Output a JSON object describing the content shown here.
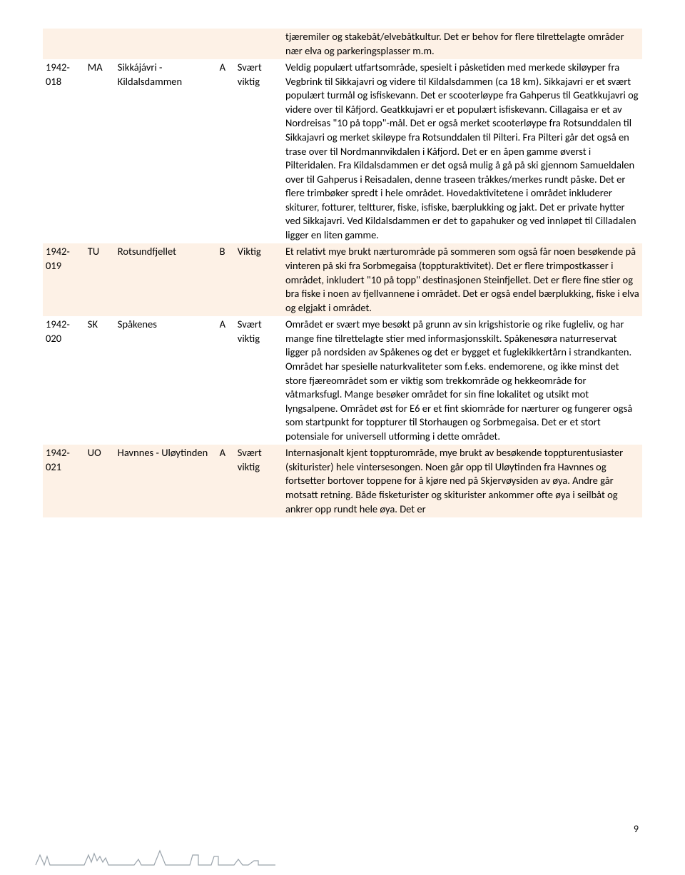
{
  "colors": {
    "row_bg_even": "#fdf1e6",
    "row_bg_odd": "#ffffff",
    "text": "#000000",
    "page_bg": "#ffffff",
    "sketch_stroke": "#9aa3ab"
  },
  "rows": [
    {
      "id": "",
      "type": "",
      "name": "",
      "grade": "",
      "importance": "",
      "desc": "tjæremiler og stakebåt/elvebåtkultur. Det er behov for flere tilrettelagte områder nær elva og parkeringsplasser m.m.",
      "bg": "#fdf1e6"
    },
    {
      "id": "1942-018",
      "type": "MA",
      "name": "Sikkájávri - Kildalsdammen",
      "grade": "A",
      "importance": "Svært viktig",
      "desc": "Veldig populært utfartsområde, spesielt i påsketiden med merkede skiløyper fra Vegbrink til Sikkajavri og videre til Kildalsdammen (ca 18 km). Sikkajavri er et svært populært turmål og isfiskevann. Det er scooterløype fra Gahperus til Geatkkujavri og videre over til Kåfjord. Geatkkujavri er et populært isfiskevann. Cillagaisa er et av Nordreisas \"10 på topp\"-mål. Det er også merket scooterløype fra Rotsunddalen til Sikkajavri og merket skiløype fra Rotsunddalen til Pilteri. Fra Pilteri går det også en trase over til Nordmannvikdalen i Kåfjord. Det er en åpen gamme øverst i Pilteridalen. Fra Kildalsdammen er det også mulig å gå på ski gjennom Samueldalen over til Gahperus i Reisadalen, denne traseen tråkkes/merkes rundt påske. Det er flere trimbøker spredt i hele området. Hovedaktivitetene i området inkluderer skiturer, fotturer, teltturer, fiske, isfiske, bærplukking og jakt. Det er private hytter ved Sikkajavri. Ved Kildalsdammen er det to gapahuker og ved innløpet til Cilladalen ligger en liten gamme.",
      "bg": "#ffffff"
    },
    {
      "id": "1942-019",
      "type": "TU",
      "name": "Rotsundfjellet",
      "grade": "B",
      "importance": "Viktig",
      "desc": "Et relativt mye brukt nærturområde på sommeren som også får noen besøkende på vinteren på ski fra Sorbmegaisa (toppturaktivitet). Det er flere trimpostkasser i området, inkludert \"10 på topp\" destinasjonen Steinfjellet. Det er flere fine stier og bra fiske i noen av fjellvannene i området. Det er også endel bærplukking, fiske i elva og elgjakt i området.",
      "bg": "#fdf1e6"
    },
    {
      "id": "1942-020",
      "type": "SK",
      "name": "Spåkenes",
      "grade": "A",
      "importance": "Svært viktig",
      "desc": "Området er svært mye besøkt på grunn av sin krigshistorie og rike fugleliv, og har mange fine tilrettelagte stier med informasjonsskilt. Spåkenesøra naturreservat ligger på nordsiden av Spåkenes og det er bygget et fuglekikkertårn i strandkanten. Området har spesielle naturkvaliteter som f.eks. endemorene, og ikke minst det store fjæreområdet som er viktig som trekkområde og hekkeområde for våtmarksfugl. Mange besøker området for sin fine lokalitet og utsikt mot lyngsalpene. Området øst for E6 er et fint skiområde for nærturer og fungerer også som startpunkt for toppturer til Storhaugen og Sorbmegaisa. Det er et stort potensiale for universell utforming i dette området.",
      "bg": "#ffffff"
    },
    {
      "id": "1942-021",
      "type": "UO",
      "name": "Havnnes - Uløytinden",
      "grade": "A",
      "importance": "Svært viktig",
      "desc": "Internasjonalt kjent toppturområde, mye brukt av besøkende toppturentusiaster (skiturister) hele vintersesongen. Noen går opp til Uløytinden fra Havnnes og fortsetter bortover toppene for å kjøre ned på Skjervøysiden av øya. Andre går motsatt retning. Både fisketurister og skiturister ankommer ofte øya i seilbåt og ankrer opp rundt hele øya. Det er",
      "bg": "#fdf1e6"
    }
  ],
  "page_number": "9"
}
